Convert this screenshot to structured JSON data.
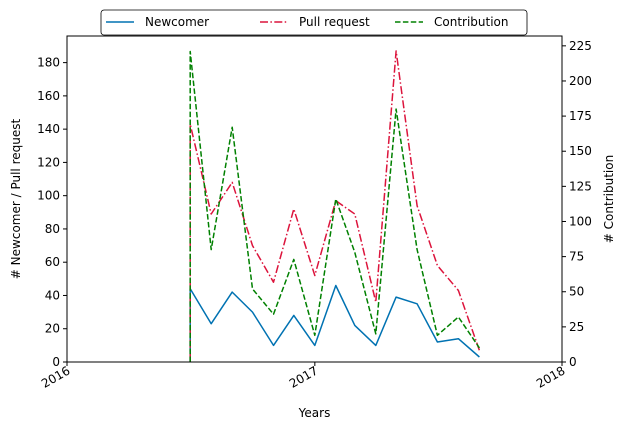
{
  "chart_data": {
    "type": "line",
    "xlabel": "Years",
    "ylabel_left": "# Newcomer / Pull request",
    "ylabel_right": "# Contribution",
    "x_ticks": [
      "2016",
      "2017",
      "2018"
    ],
    "x_range": [
      "2016-01-01",
      "2018-01-01"
    ],
    "y_left_range": [
      0,
      196
    ],
    "y_left_ticks": [
      0,
      20,
      40,
      60,
      80,
      100,
      120,
      140,
      160,
      180
    ],
    "y_right_range": [
      0,
      232
    ],
    "y_right_ticks": [
      0,
      25,
      50,
      75,
      100,
      125,
      150,
      175,
      200,
      225
    ],
    "legend_position": "top-center",
    "grid": false,
    "x": [
      "2016-07-01",
      "2016-08-01",
      "2016-09-01",
      "2016-10-01",
      "2016-11-01",
      "2016-12-01",
      "2017-01-01",
      "2017-02-01",
      "2017-03-01",
      "2017-04-01",
      "2017-05-01",
      "2017-06-01",
      "2017-07-01",
      "2017-08-01",
      "2017-09-01"
    ],
    "series": [
      {
        "name": "Newcomer",
        "axis": "left",
        "color": "#0072b2",
        "style": "solid",
        "values": [
          44,
          23,
          42,
          30,
          10,
          28,
          10,
          46,
          22,
          10,
          39,
          35,
          12,
          14,
          3
        ]
      },
      {
        "name": "Pull request",
        "axis": "left",
        "color": "#dc143c",
        "style": "dashdot",
        "values": [
          143,
          89,
          108,
          70,
          48,
          92,
          52,
          97,
          89,
          36,
          187,
          94,
          58,
          43,
          7
        ]
      },
      {
        "name": "Contribution",
        "axis": "right",
        "color": "#008000",
        "style": "dashed",
        "values": [
          221,
          80,
          167,
          52,
          34,
          73,
          19,
          116,
          78,
          20,
          180,
          80,
          19,
          32,
          10
        ]
      }
    ]
  }
}
